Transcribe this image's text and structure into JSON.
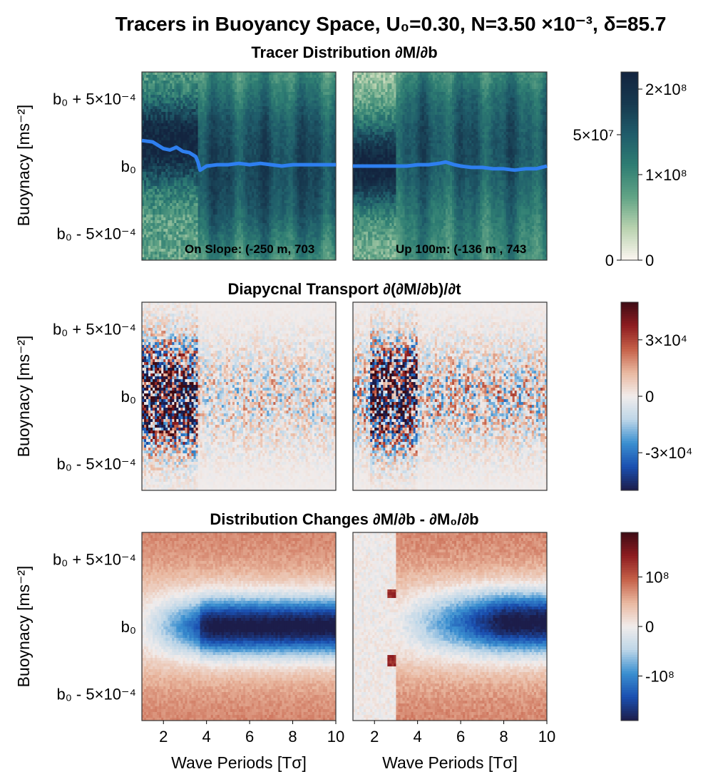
{
  "figure": {
    "title": "Tracers in Buoyancy Space, U₀=0.30, N=3.50 ×10⁻³, δ=85.7"
  },
  "colors": {
    "tracer_line": "#2e7ff0",
    "frame": "#333333",
    "cmap_tempo": [
      "#fdf6f1",
      "#bad3b0",
      "#62a486",
      "#2f7e73",
      "#1f5c6a",
      "#17394f",
      "#13243f"
    ],
    "cmap_balance": [
      "#1c1d4a",
      "#1a4fb0",
      "#3a8fd0",
      "#bdd6e8",
      "#f1eceb",
      "#e9b8a0",
      "#c56048",
      "#8d1c20",
      "#3d0b14"
    ]
  },
  "chart_data": [
    {
      "type": "heatmap",
      "row_title": "Tracer Distribution ∂M/∂b",
      "ylabel": "Buoynacy [ms⁻²]",
      "yticks": [
        "b₀ + 5×10⁻⁴",
        "b₀",
        "b₀ - 5×10⁻⁴"
      ],
      "ytick_values": [
        0.0005,
        0,
        -0.0005
      ],
      "ylim": [
        -0.0007,
        0.0007
      ],
      "xlim": [
        1,
        10
      ],
      "colormap": "tempo",
      "colorbar": {
        "range": [
          0,
          220000000
        ],
        "ticks_right": [
          "2×10⁸",
          "1×10⁸",
          "0"
        ],
        "tick_values_right": [
          200000000,
          100000000,
          0
        ],
        "ticks_left": [
          "5×10⁷",
          "0"
        ],
        "tick_values_left": [
          50000000,
          0
        ]
      },
      "panels": [
        {
          "annotation": "On Slope: (-250 m, 703",
          "series": [
            {
              "x": [
                1,
                1.5,
                2,
                2.3,
                2.6,
                2.9,
                3.2,
                3.5,
                3.6,
                3.7,
                4,
                4.5,
                5,
                5.5,
                6,
                6.5,
                7,
                7.5,
                8,
                8.5,
                9,
                9.5,
                10
              ],
              "y": [
                0.00019,
                0.00018,
                0.00013,
                0.00012,
                0.00014,
                0.00011,
                0.0001,
                7e-05,
                3e-05,
                -3e-05,
                0,
                1e-05,
                1e-05,
                2e-05,
                1e-05,
                2e-05,
                1e-05,
                0,
                1e-05,
                1e-05,
                1e-05,
                1e-05,
                1e-05
              ]
            }
          ]
        },
        {
          "annotation": "Up 100m: (-136 m , 743",
          "series": [
            {
              "x": [
                1,
                2,
                3,
                3.5,
                4,
                4.5,
                5,
                5.3,
                5.7,
                6,
                6.5,
                7,
                7.5,
                8,
                8.5,
                9,
                9.5,
                10
              ],
              "y": [
                0,
                0,
                0,
                0,
                1e-05,
                1e-05,
                2e-05,
                3e-05,
                1e-05,
                0,
                -1e-05,
                -1e-05,
                -2e-05,
                -2e-05,
                -3e-05,
                -2e-05,
                -2e-05,
                0
              ]
            }
          ]
        }
      ]
    },
    {
      "type": "heatmap",
      "row_title": "Diapycnal Transport ∂(∂M/∂b)/∂t",
      "ylabel": "Buoynacy [ms⁻²]",
      "yticks": [
        "b₀ + 5×10⁻⁴",
        "b₀",
        "b₀ - 5×10⁻⁴"
      ],
      "ytick_values": [
        0.0005,
        0,
        -0.0005
      ],
      "ylim": [
        -0.0007,
        0.0007
      ],
      "xlim": [
        1,
        10
      ],
      "colormap": "balance",
      "colorbar": {
        "range": [
          -50000,
          50000
        ],
        "ticks": [
          "3×10⁴",
          "0",
          "-3×10⁴"
        ],
        "tick_values": [
          30000,
          0,
          -30000
        ]
      },
      "panels": [
        {},
        {}
      ]
    },
    {
      "type": "heatmap",
      "row_title": "Distribution Changes ∂M/∂b - ∂M₀/∂b",
      "ylabel": "Buoynacy [ms⁻²]",
      "xlabel": "Wave Periods [Tσ]",
      "xticks": [
        "2",
        "4",
        "6",
        "8",
        "10"
      ],
      "xtick_values": [
        2,
        4,
        6,
        8,
        10
      ],
      "yticks": [
        "b₀ + 5×10⁻⁴",
        "b₀",
        "b₀ - 5×10⁻⁴"
      ],
      "ytick_values": [
        0.0005,
        0,
        -0.0005
      ],
      "ylim": [
        -0.0007,
        0.0007
      ],
      "xlim": [
        1,
        10
      ],
      "colormap": "balance",
      "colorbar": {
        "range": [
          -190000000,
          190000000
        ],
        "ticks": [
          "10⁸",
          "0",
          "-10⁸"
        ],
        "tick_values": [
          100000000,
          0,
          -100000000
        ]
      },
      "panels": [
        {},
        {}
      ]
    }
  ]
}
